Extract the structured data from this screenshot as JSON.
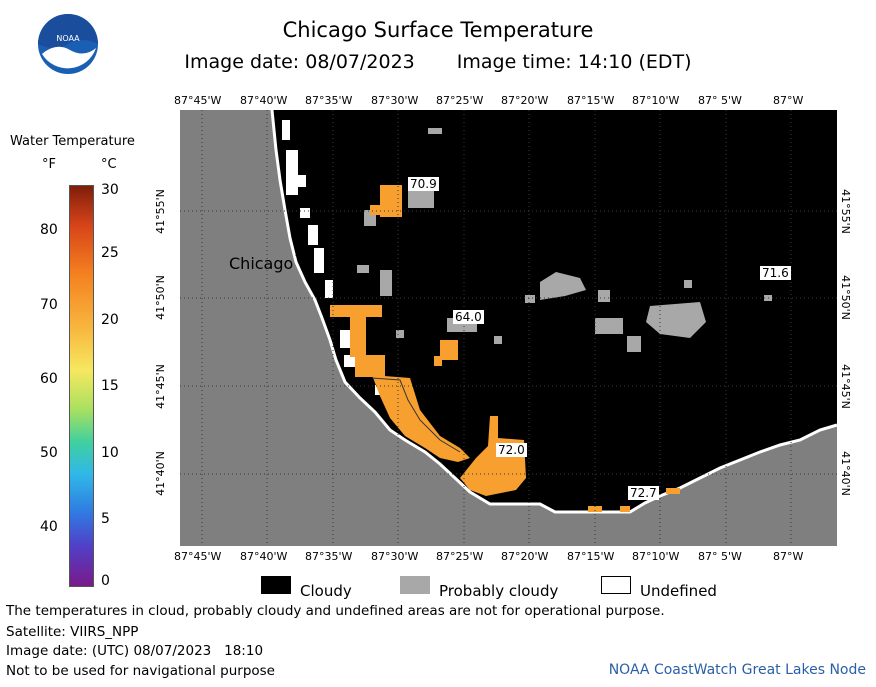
{
  "header": {
    "title": "Chicago Surface Temperature",
    "image_date": "Image date: 08/07/2023",
    "image_time": "Image time: 14:10 (EDT)",
    "logo_text": "NOAA"
  },
  "colorbar": {
    "title": "Water Temperature",
    "unit_f": "°F",
    "unit_c": "°C",
    "f_ticks": [
      "80",
      "70",
      "60",
      "50",
      "40"
    ],
    "c_ticks": [
      "30",
      "25",
      "20",
      "15",
      "10",
      "5",
      "0"
    ]
  },
  "map": {
    "city_label": "Chicago",
    "lon_labels": [
      "87°45'W",
      "87°40'W",
      "87°35'W",
      "87°30'W",
      "87°25'W",
      "87°20'W",
      "87°15'W",
      "87°10'W",
      "87° 5'W",
      "87°W"
    ],
    "lat_labels": [
      "41°55'N",
      "41°50'N",
      "41°45'N",
      "41°40'N"
    ],
    "temperature_labels": [
      "70.9",
      "71.6",
      "64.0",
      "72.0",
      "72.7"
    ],
    "colors": {
      "land": "#7f7f7f",
      "cloudy": "#000000",
      "probably_cloudy": "#a8a8a8",
      "undefined": "#ffffff",
      "warm_water": "#f7a030"
    }
  },
  "legend": {
    "cloudy": "Cloudy",
    "probably_cloudy": "Probably cloudy",
    "undefined": "Undefined"
  },
  "footer": {
    "disclaimer": "The temperatures in cloud, probably cloudy and undefined areas are not for operational purpose.",
    "satellite": "Satellite: VIIRS_NPP",
    "utc_date": "Image date: (UTC) 08/07/2023   18:10",
    "nav_warning": "Not to be used for navigational purpose",
    "credit": "NOAA CoastWatch Great Lakes Node"
  }
}
